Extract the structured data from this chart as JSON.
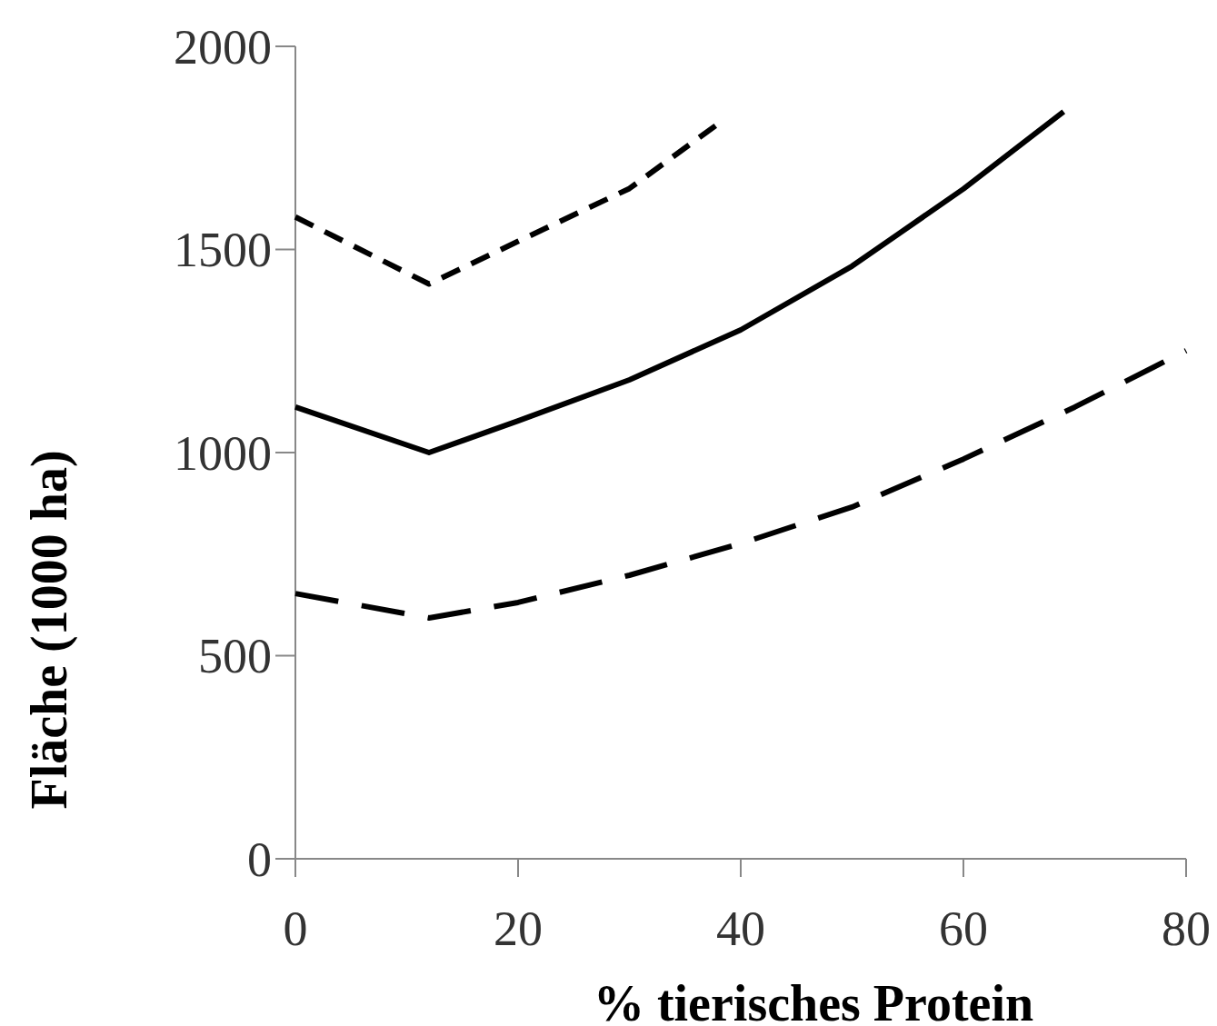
{
  "chart_data": {
    "type": "line",
    "xlabel": "% tierisches Protein",
    "ylabel": "Fläche (1000 ha)",
    "xlim": [
      0,
      80
    ],
    "xticks": [
      0,
      20,
      40,
      60,
      80
    ],
    "ylim": [
      0,
      2000
    ],
    "yticks": [
      0,
      500,
      1000,
      1500,
      2000
    ],
    "grid": false,
    "series": [
      {
        "color": "#000000",
        "line_style": "dashed",
        "x": [
          0,
          12,
          20,
          30,
          38
        ],
        "values": [
          1580,
          1415,
          1520,
          1650,
          1810
        ]
      },
      {
        "color": "#000000",
        "line_style": "solid",
        "x": [
          0,
          12,
          20,
          30,
          40,
          50,
          60,
          69
        ],
        "values": [
          1112,
          1000,
          1078,
          1179,
          1302,
          1459,
          1649,
          1839
        ]
      },
      {
        "color": "#000000",
        "line_style": "longdash",
        "x": [
          0,
          12,
          20,
          30,
          40,
          50,
          60,
          70,
          80
        ],
        "values": [
          653,
          593,
          631,
          698,
          776,
          866,
          984,
          1112,
          1251
        ]
      }
    ]
  }
}
